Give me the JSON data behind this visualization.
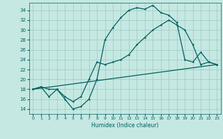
{
  "xlabel": "Humidex (Indice chaleur)",
  "background_color": "#c5e8e2",
  "grid_color": "#9dc8c0",
  "line_color": "#006060",
  "xlim": [
    -0.5,
    23.5
  ],
  "ylim": [
    13,
    35.5
  ],
  "yticks": [
    14,
    16,
    18,
    20,
    22,
    24,
    26,
    28,
    30,
    32,
    34
  ],
  "xticks": [
    0,
    1,
    2,
    3,
    4,
    5,
    6,
    7,
    8,
    9,
    10,
    11,
    12,
    13,
    14,
    15,
    16,
    17,
    18,
    19,
    20,
    21,
    22,
    23
  ],
  "line1_x": [
    0,
    1,
    2,
    3,
    4,
    5,
    6,
    7,
    8,
    9,
    10,
    11,
    12,
    13,
    14,
    15,
    16,
    17,
    18,
    19,
    20,
    21,
    22,
    23
  ],
  "line1_y": [
    18,
    18.5,
    16.5,
    18,
    16,
    14,
    14.5,
    16,
    20,
    28,
    30.5,
    32.5,
    34,
    34.5,
    34.2,
    35,
    33.5,
    33,
    31.5,
    24,
    23.5,
    25.5,
    23.5,
    23
  ],
  "line2_x": [
    0,
    1,
    2,
    3,
    4,
    5,
    6,
    7,
    8,
    9,
    10,
    11,
    12,
    13,
    14,
    15,
    16,
    17,
    18,
    19,
    20,
    21,
    22,
    23
  ],
  "line2_y": [
    18,
    18.5,
    18,
    18,
    16.5,
    15.5,
    16.5,
    20,
    23.5,
    23,
    23.5,
    24,
    25,
    27,
    28.5,
    30,
    31,
    32,
    31,
    30,
    27,
    23,
    23.5,
    23
  ],
  "line3_x": [
    0,
    23
  ],
  "line3_y": [
    18,
    23
  ]
}
